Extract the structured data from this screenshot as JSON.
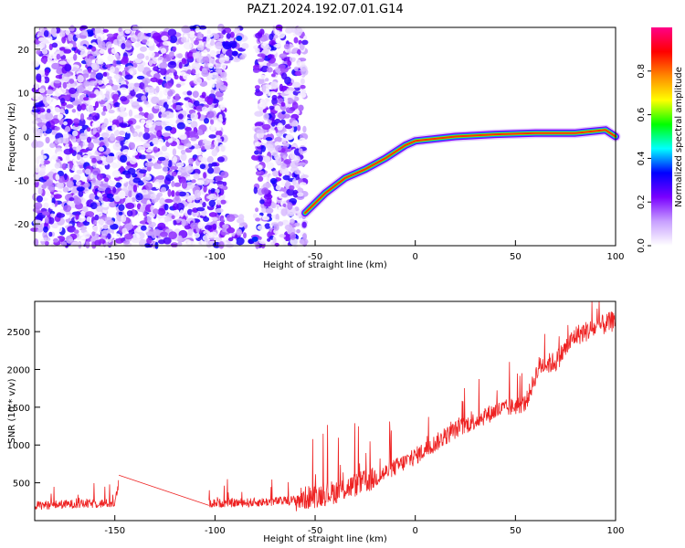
{
  "figure": {
    "title": "PAZ1.2024.192.07.01.G14"
  },
  "chart_data": [
    {
      "type": "heatmap",
      "xlabel": "Height of straight line (km)",
      "ylabel": "Frequency (Hz)",
      "xlim": [
        -190,
        100
      ],
      "ylim": [
        -25,
        25
      ],
      "xticks": [
        -150,
        -100,
        -50,
        0,
        50,
        100
      ],
      "yticks": [
        20,
        10,
        0,
        -10,
        -20
      ],
      "noise_regions": [
        {
          "x_range": [
            -190,
            -95
          ],
          "y_range": [
            -25,
            25
          ]
        },
        {
          "x_range": [
            -80,
            -55
          ],
          "y_range": [
            -25,
            25
          ]
        },
        {
          "x_range": [
            -97,
            -85
          ],
          "y_range": [
            -25,
            -18
          ]
        },
        {
          "x_range": [
            -97,
            -85
          ],
          "y_range": [
            17,
            25
          ]
        }
      ],
      "ridge": {
        "description_x": [
          -55,
          -45,
          -35,
          -25,
          -15,
          -5,
          0,
          20,
          40,
          60,
          80,
          95,
          100
        ],
        "frequency": [
          -17.5,
          -13,
          -9.5,
          -7.5,
          -5,
          -2,
          -1,
          0,
          0.5,
          0.8,
          0.8,
          1.5,
          0
        ]
      },
      "colorbar": {
        "label": "Normalized spectral amplitude",
        "range": [
          0,
          1
        ],
        "ticks": [
          0.0,
          0.2,
          0.4,
          0.6,
          0.8
        ],
        "colormap": [
          "#ffffff",
          "#c8a0ff",
          "#7a00ff",
          "#0000ff",
          "#00ffff",
          "#00ff00",
          "#ffff00",
          "#ff8800",
          "#ff0000",
          "#ff0088"
        ]
      },
      "grid": false
    },
    {
      "type": "line",
      "xlabel": "Height of straight line (km)",
      "ylabel": "SNR (10 * v/v)",
      "xlim": [
        -190,
        100
      ],
      "ylim": [
        0,
        2900
      ],
      "xticks": [
        -150,
        -100,
        -50,
        0,
        50,
        100
      ],
      "yticks": [
        500,
        1000,
        1500,
        2000,
        2500
      ],
      "series": [
        {
          "color": "#ee2222",
          "segments": [
            {
              "x": [
                -190,
                -170,
                -150,
                -148
              ],
              "y": [
                200,
                220,
                230,
                500
              ]
            },
            {
              "x": [
                -148,
                -103
              ],
              "y": [
                600,
                200
              ]
            },
            {
              "x": [
                -103,
                -80,
                -60,
                -40,
                -20,
                0,
                20,
                40,
                55,
                62,
                70,
                80,
                100
              ],
              "y": [
                230,
                240,
                270,
                380,
                560,
                850,
                1200,
                1450,
                1550,
                2050,
                2100,
                2450,
                2650
              ]
            }
          ],
          "noise_amplitude": [
            {
              "x_range": [
                -190,
                -148
              ],
              "amp": 120
            },
            {
              "x_range": [
                -103,
                -60
              ],
              "amp": 120
            },
            {
              "x_range": [
                -60,
                -20
              ],
              "amp": 320
            },
            {
              "x_range": [
                -20,
                60
              ],
              "amp": 240
            },
            {
              "x_range": [
                60,
                100
              ],
              "amp": 280
            }
          ]
        }
      ],
      "grid": false
    }
  ]
}
